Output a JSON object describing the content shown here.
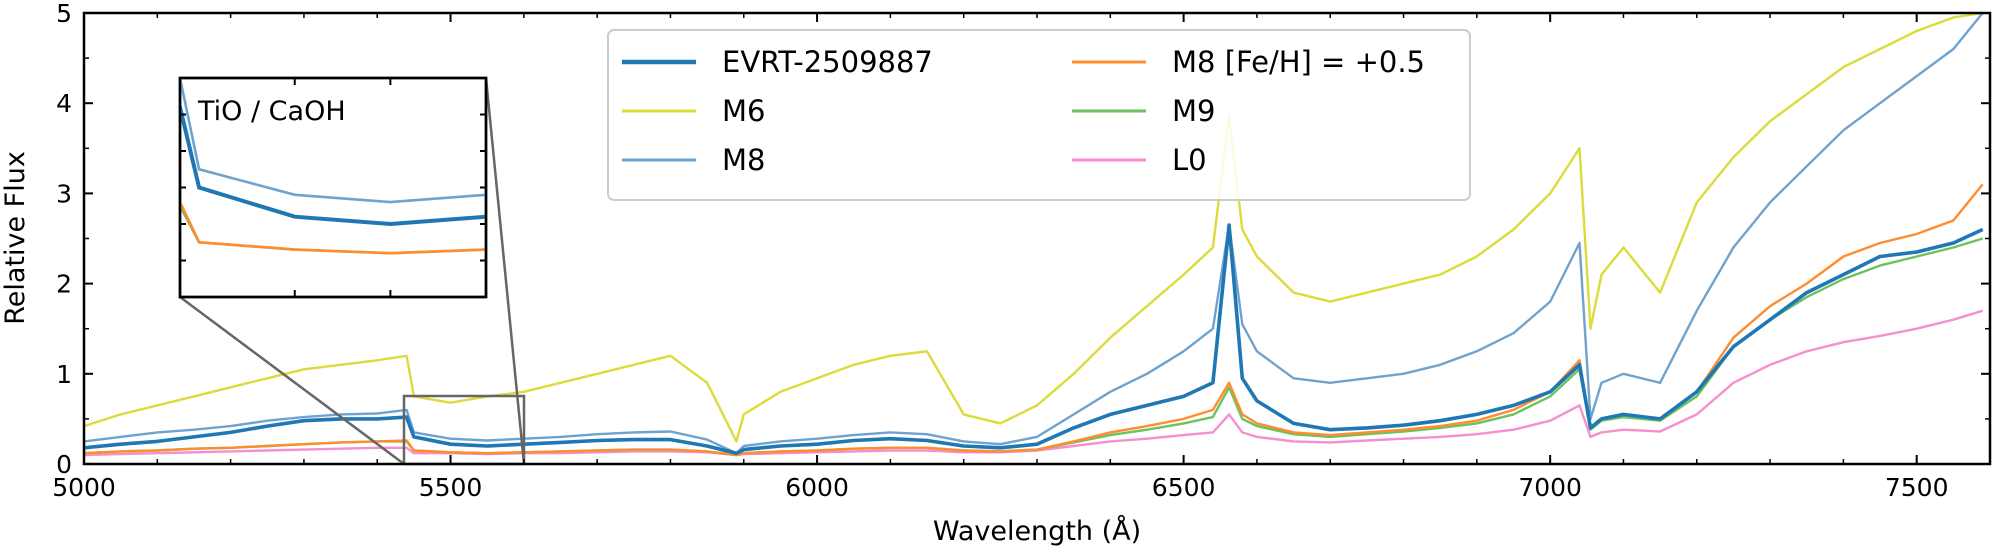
{
  "chart_data": {
    "type": "line",
    "xlabel": "Wavelength (Å)",
    "ylabel": "Relative Flux",
    "xlim": [
      5000,
      7600
    ],
    "ylim": [
      0,
      5
    ],
    "x_ticks": [
      "5000",
      "5500",
      "6000",
      "6500",
      "7000",
      "7500"
    ],
    "y_ticks": [
      "0",
      "1",
      "2",
      "3",
      "4",
      "5"
    ],
    "grid": false,
    "legend_position": "top-center",
    "x": [
      5000,
      5050,
      5100,
      5150,
      5200,
      5250,
      5300,
      5350,
      5400,
      5440,
      5450,
      5500,
      5550,
      5600,
      5650,
      5700,
      5750,
      5800,
      5850,
      5890,
      5900,
      5950,
      6000,
      6050,
      6100,
      6150,
      6200,
      6250,
      6300,
      6350,
      6400,
      6450,
      6500,
      6540,
      6562,
      6580,
      6600,
      6650,
      6700,
      6750,
      6800,
      6850,
      6900,
      6950,
      7000,
      7040,
      7055,
      7070,
      7100,
      7150,
      7200,
      7250,
      7300,
      7350,
      7400,
      7450,
      7500,
      7550,
      7590
    ],
    "series": [
      {
        "name": "EVRT-2509887",
        "color": "#1f77b4",
        "values": [
          0.18,
          0.22,
          0.25,
          0.3,
          0.35,
          0.42,
          0.48,
          0.5,
          0.5,
          0.52,
          0.3,
          0.22,
          0.2,
          0.22,
          0.24,
          0.26,
          0.27,
          0.27,
          0.2,
          0.12,
          0.16,
          0.2,
          0.22,
          0.26,
          0.28,
          0.26,
          0.2,
          0.18,
          0.22,
          0.4,
          0.55,
          0.65,
          0.75,
          0.9,
          2.65,
          0.95,
          0.7,
          0.45,
          0.38,
          0.4,
          0.43,
          0.48,
          0.55,
          0.65,
          0.8,
          1.1,
          0.4,
          0.5,
          0.55,
          0.5,
          0.8,
          1.3,
          1.6,
          1.9,
          2.1,
          2.3,
          2.35,
          2.45,
          2.6
        ]
      },
      {
        "name": "M6",
        "color": "#dbdb3a",
        "values": [
          0.42,
          0.55,
          0.65,
          0.75,
          0.85,
          0.95,
          1.05,
          1.1,
          1.15,
          1.2,
          0.75,
          0.68,
          0.75,
          0.8,
          0.9,
          1.0,
          1.1,
          1.2,
          0.9,
          0.25,
          0.55,
          0.8,
          0.95,
          1.1,
          1.2,
          1.25,
          0.55,
          0.45,
          0.65,
          1.0,
          1.4,
          1.75,
          2.1,
          2.4,
          3.85,
          2.6,
          2.3,
          1.9,
          1.8,
          1.9,
          2.0,
          2.1,
          2.3,
          2.6,
          3.0,
          3.5,
          1.5,
          2.1,
          2.4,
          1.9,
          2.9,
          3.4,
          3.8,
          4.1,
          4.4,
          4.6,
          4.8,
          4.95,
          5.0
        ]
      },
      {
        "name": "M8",
        "color": "#6fa3cf",
        "values": [
          0.25,
          0.3,
          0.35,
          0.38,
          0.42,
          0.48,
          0.52,
          0.55,
          0.56,
          0.6,
          0.35,
          0.28,
          0.26,
          0.28,
          0.3,
          0.33,
          0.35,
          0.36,
          0.27,
          0.12,
          0.2,
          0.25,
          0.28,
          0.32,
          0.35,
          0.33,
          0.25,
          0.22,
          0.3,
          0.55,
          0.8,
          1.0,
          1.25,
          1.5,
          2.65,
          1.55,
          1.25,
          0.95,
          0.9,
          0.95,
          1.0,
          1.1,
          1.25,
          1.45,
          1.8,
          2.45,
          0.5,
          0.9,
          1.0,
          0.9,
          1.7,
          2.4,
          2.9,
          3.3,
          3.7,
          4.0,
          4.3,
          4.6,
          5.0
        ]
      },
      {
        "name": "M8 [Fe/H] = +0.5",
        "color": "#ff8c2e",
        "values": [
          0.12,
          0.14,
          0.15,
          0.17,
          0.18,
          0.2,
          0.22,
          0.24,
          0.25,
          0.26,
          0.15,
          0.13,
          0.12,
          0.13,
          0.14,
          0.15,
          0.16,
          0.16,
          0.14,
          0.1,
          0.12,
          0.14,
          0.15,
          0.17,
          0.18,
          0.18,
          0.15,
          0.14,
          0.16,
          0.25,
          0.35,
          0.42,
          0.5,
          0.6,
          0.9,
          0.55,
          0.45,
          0.35,
          0.32,
          0.35,
          0.38,
          0.42,
          0.48,
          0.6,
          0.8,
          1.15,
          0.4,
          0.5,
          0.55,
          0.5,
          0.8,
          1.4,
          1.75,
          2.0,
          2.3,
          2.45,
          2.55,
          2.7,
          3.1
        ]
      },
      {
        "name": "M9",
        "color": "#6cc25e",
        "values": [
          0.12,
          0.14,
          0.15,
          0.17,
          0.18,
          0.2,
          0.22,
          0.24,
          0.25,
          0.25,
          0.15,
          0.13,
          0.12,
          0.13,
          0.14,
          0.15,
          0.16,
          0.16,
          0.14,
          0.1,
          0.12,
          0.14,
          0.15,
          0.17,
          0.18,
          0.18,
          0.15,
          0.14,
          0.16,
          0.24,
          0.32,
          0.38,
          0.45,
          0.52,
          0.85,
          0.5,
          0.42,
          0.33,
          0.3,
          0.33,
          0.36,
          0.4,
          0.45,
          0.55,
          0.75,
          1.05,
          0.38,
          0.48,
          0.52,
          0.48,
          0.75,
          1.3,
          1.6,
          1.85,
          2.05,
          2.2,
          2.3,
          2.4,
          2.5
        ]
      },
      {
        "name": "L0",
        "color": "#f58fd0",
        "values": [
          0.1,
          0.11,
          0.12,
          0.13,
          0.14,
          0.15,
          0.16,
          0.17,
          0.18,
          0.18,
          0.12,
          0.12,
          0.11,
          0.12,
          0.12,
          0.13,
          0.14,
          0.14,
          0.13,
          0.1,
          0.11,
          0.12,
          0.13,
          0.14,
          0.15,
          0.15,
          0.13,
          0.13,
          0.15,
          0.2,
          0.25,
          0.28,
          0.32,
          0.35,
          0.55,
          0.35,
          0.3,
          0.25,
          0.24,
          0.26,
          0.28,
          0.3,
          0.33,
          0.38,
          0.48,
          0.65,
          0.3,
          0.35,
          0.38,
          0.36,
          0.55,
          0.9,
          1.1,
          1.25,
          1.35,
          1.42,
          1.5,
          1.6,
          1.7
        ]
      }
    ],
    "inset": {
      "label": "TiO / CaOH",
      "xlim": [
        5440,
        5600
      ],
      "ylim": [
        0,
        0.6
      ]
    }
  }
}
